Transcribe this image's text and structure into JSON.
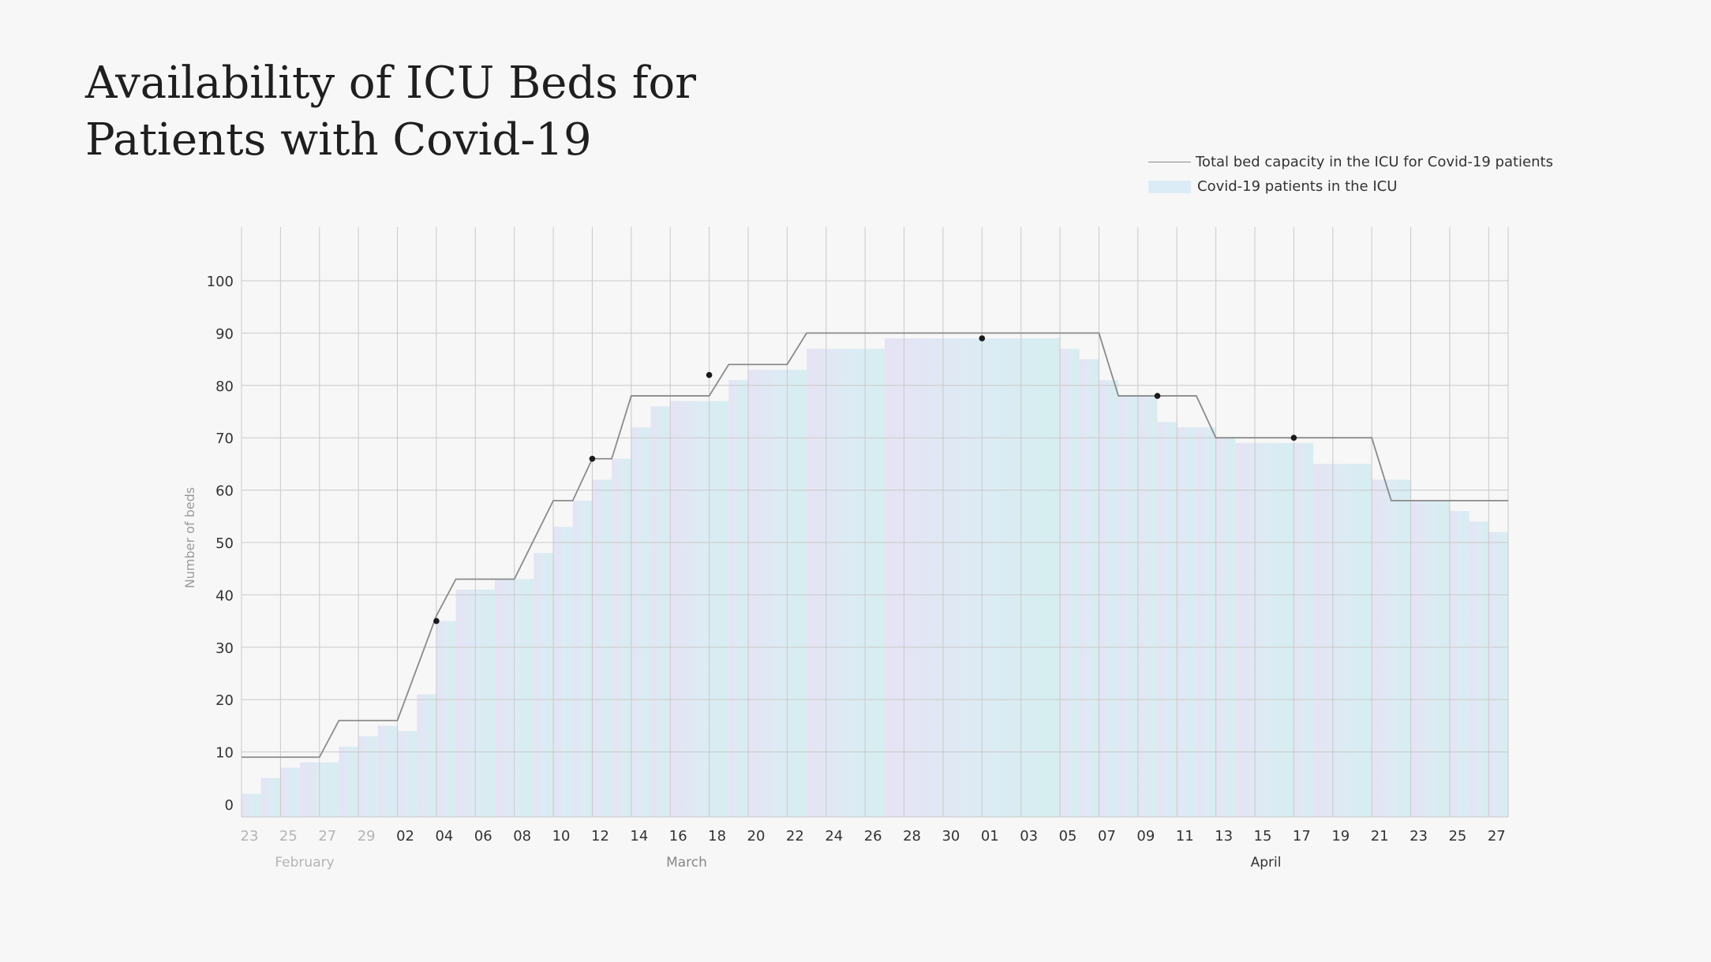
{
  "title": "Availability of ICU Beds for Patients with Covid-19",
  "legend": {
    "capacity_label": "Total bed capacity in the ICU for Covid-19 patients",
    "patients_label": "Covid-19 patients in the ICU"
  },
  "colors": {
    "capacity_line": "#8a8a8a",
    "fill_start": "#e6e3f4",
    "fill_mid": "#dcebf4",
    "fill_end": "#d6eef0",
    "grid": "#c9c9c9",
    "marker": "#1a1a1a"
  },
  "chart_data": {
    "type": "area",
    "ylabel": "Number of beds",
    "ylim": [
      0,
      110
    ],
    "yticks": [
      0,
      10,
      20,
      30,
      40,
      50,
      60,
      70,
      80,
      90,
      100
    ],
    "xlim": [
      "2020-02-23",
      "2020-04-28"
    ],
    "xtick_labels": [
      "23",
      "25",
      "27",
      "29",
      "02",
      "04",
      "06",
      "08",
      "10",
      "12",
      "14",
      "16",
      "18",
      "20",
      "22",
      "24",
      "26",
      "28",
      "30",
      "01",
      "03",
      "05",
      "07",
      "09",
      "11",
      "13",
      "15",
      "17",
      "19",
      "21",
      "23",
      "25",
      "27"
    ],
    "month_labels": [
      "February",
      "March",
      "April"
    ],
    "grid": true,
    "legend_position": "top-right",
    "series": [
      {
        "name": "Covid-19 patients in the ICU",
        "type": "step-area",
        "x": [
          "2020-02-23",
          "2020-02-24",
          "2020-02-25",
          "2020-02-26",
          "2020-02-28",
          "2020-02-29",
          "2020-03-01",
          "2020-03-02",
          "2020-03-03",
          "2020-03-04",
          "2020-03-05",
          "2020-03-07",
          "2020-03-09",
          "2020-03-10",
          "2020-03-11",
          "2020-03-12",
          "2020-03-13",
          "2020-03-14",
          "2020-03-15",
          "2020-03-16",
          "2020-03-19",
          "2020-03-20",
          "2020-03-23",
          "2020-03-27",
          "2020-04-05",
          "2020-04-06",
          "2020-04-07",
          "2020-04-08",
          "2020-04-09",
          "2020-04-10",
          "2020-04-11",
          "2020-04-12",
          "2020-04-13",
          "2020-04-14",
          "2020-04-17",
          "2020-04-18",
          "2020-04-21",
          "2020-04-23",
          "2020-04-25",
          "2020-04-26",
          "2020-04-27"
        ],
        "y": [
          2,
          5,
          7,
          8,
          11,
          13,
          15,
          14,
          21,
          35,
          41,
          43,
          48,
          53,
          58,
          62,
          66,
          72,
          76,
          77,
          81,
          83,
          87,
          89,
          87,
          85,
          81,
          78,
          78,
          73,
          72,
          72,
          70,
          69,
          69,
          65,
          62,
          58,
          56,
          54,
          52
        ]
      },
      {
        "name": "Total bed capacity in the ICU for Covid-19 patients",
        "type": "line",
        "x": [
          "2020-02-23",
          "2020-02-27",
          "2020-02-28",
          "2020-03-02",
          "2020-03-04",
          "2020-03-05",
          "2020-03-08",
          "2020-03-10",
          "2020-03-11",
          "2020-03-12",
          "2020-03-13",
          "2020-03-14",
          "2020-03-18",
          "2020-03-19",
          "2020-03-22",
          "2020-03-23",
          "2020-04-07",
          "2020-04-08",
          "2020-04-12",
          "2020-04-13",
          "2020-04-21",
          "2020-04-22",
          "2020-04-28"
        ],
        "y": [
          9,
          9,
          16,
          16,
          36,
          43,
          43,
          58,
          58,
          66,
          66,
          78,
          78,
          84,
          84,
          90,
          90,
          78,
          78,
          70,
          70,
          58,
          58
        ]
      }
    ],
    "markers": [
      {
        "x": "2020-03-04",
        "y": 35
      },
      {
        "x": "2020-03-12",
        "y": 66
      },
      {
        "x": "2020-03-18",
        "y": 82
      },
      {
        "x": "2020-04-01",
        "y": 89
      },
      {
        "x": "2020-04-10",
        "y": 78
      },
      {
        "x": "2020-04-17",
        "y": 70
      }
    ]
  }
}
